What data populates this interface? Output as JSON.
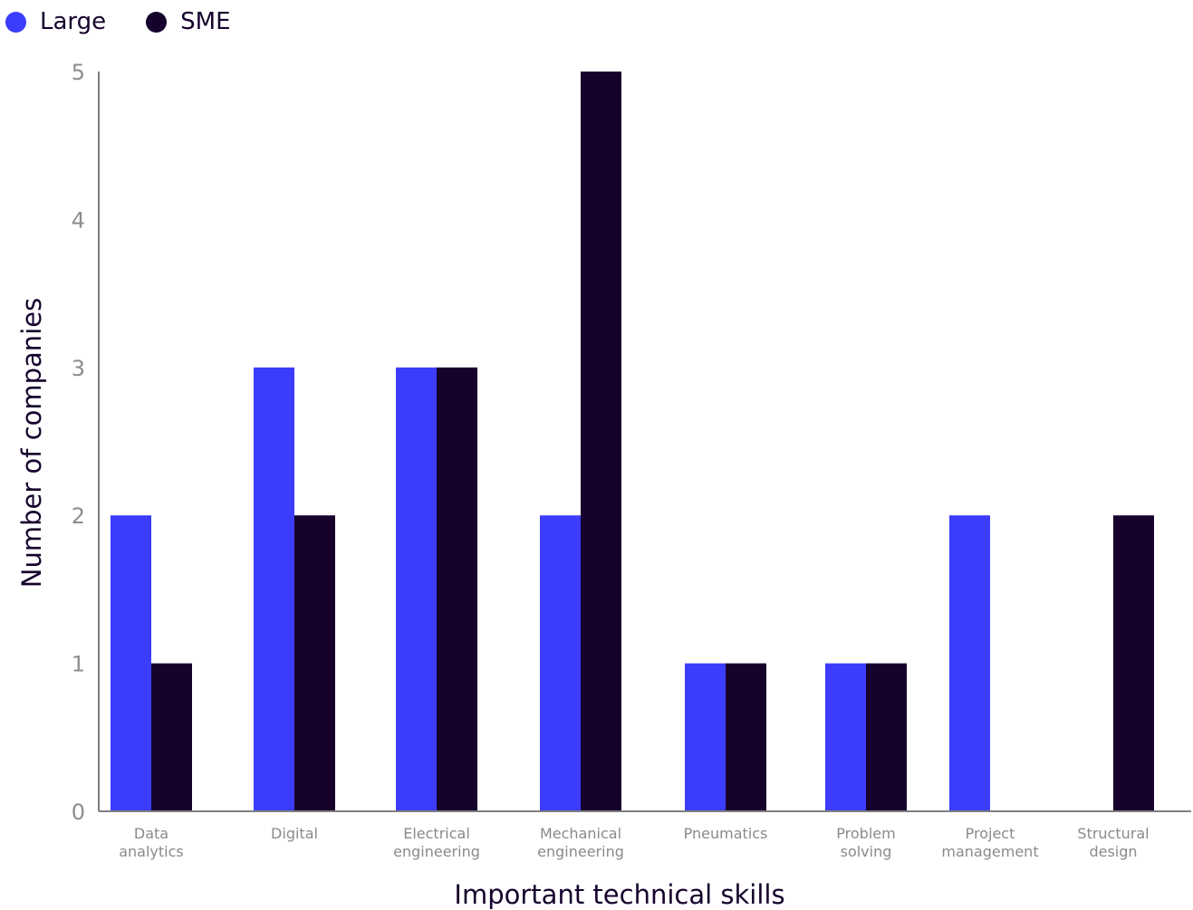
{
  "legend": {
    "items": [
      {
        "label": "Large",
        "color": "#3c3cfc"
      },
      {
        "label": "SME",
        "color": "#16022c"
      }
    ]
  },
  "chart_data": {
    "type": "bar",
    "categories": [
      [
        "Data",
        "analytics"
      ],
      [
        "Digital"
      ],
      [
        "Electrical",
        "engineering"
      ],
      [
        "Mechanical",
        "engineering"
      ],
      [
        "Pneumatics"
      ],
      [
        "Problem",
        "solving"
      ],
      [
        "Project",
        "management"
      ],
      [
        "Structural",
        "design"
      ]
    ],
    "series": [
      {
        "name": "Large",
        "color": "#3c3cfc",
        "values": [
          2,
          3,
          3,
          2,
          1,
          1,
          2,
          0
        ]
      },
      {
        "name": "SME",
        "color": "#16022c",
        "values": [
          1,
          2,
          3,
          5,
          1,
          1,
          0,
          2
        ]
      }
    ],
    "xlabel": "Important technical skills",
    "ylabel": "Number of companies",
    "ylim": [
      0,
      5
    ],
    "yticks": [
      0,
      1,
      2,
      3,
      4,
      5
    ],
    "grid": false,
    "legend_position": "top-left"
  }
}
